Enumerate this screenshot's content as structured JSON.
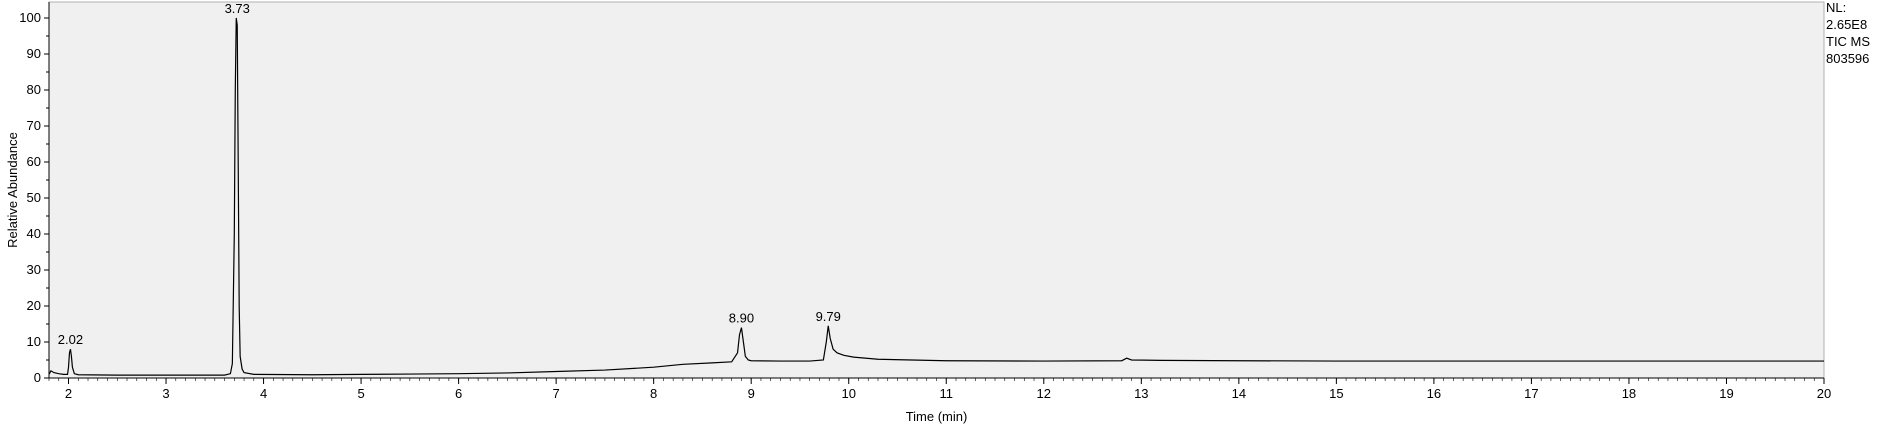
{
  "chart_data": {
    "type": "line",
    "title": "",
    "xlabel": "Time (min)",
    "ylabel": "Relative Abundance",
    "xlim": [
      1.8,
      20
    ],
    "ylim": [
      0,
      100
    ],
    "x_ticks": [
      "2",
      "3",
      "4",
      "5",
      "6",
      "7",
      "8",
      "9",
      "10",
      "11",
      "12",
      "13",
      "14",
      "15",
      "16",
      "17",
      "18",
      "19",
      "20"
    ],
    "y_ticks": [
      "0",
      "10",
      "20",
      "30",
      "40",
      "50",
      "60",
      "70",
      "80",
      "90",
      "100"
    ],
    "grid": false,
    "background": "#f0f0f0",
    "line_color": "#000000",
    "info_lines": [
      "NL:",
      "2.65E8",
      "TIC  MS",
      "803596"
    ],
    "peak_labels": [
      {
        "label": "2.02",
        "x": 2.02,
        "y": 8
      },
      {
        "label": "3.73",
        "x": 3.73,
        "y": 100
      },
      {
        "label": "8.90",
        "x": 8.9,
        "y": 14
      },
      {
        "label": "9.79",
        "x": 9.79,
        "y": 14.5
      }
    ],
    "series": [
      {
        "x": [
          1.8,
          1.82,
          1.85,
          1.9,
          1.95,
          1.99,
          2.0,
          2.01,
          2.02,
          2.03,
          2.04,
          2.06,
          2.1,
          2.5,
          3.0,
          3.5,
          3.6,
          3.66,
          3.68,
          3.7,
          3.71,
          3.72,
          3.73,
          3.74,
          3.75,
          3.76,
          3.78,
          3.8,
          3.9,
          4.5,
          5.0,
          5.5,
          6.0,
          6.5,
          7.0,
          7.5,
          8.0,
          8.3,
          8.6,
          8.8,
          8.86,
          8.88,
          8.9,
          8.92,
          8.94,
          8.97,
          9.0,
          9.3,
          9.6,
          9.74,
          9.77,
          9.79,
          9.81,
          9.84,
          9.88,
          9.95,
          10.05,
          10.3,
          11.0,
          12.0,
          12.8,
          12.85,
          12.9,
          13.2,
          14.0,
          15.0,
          16.0,
          17.0,
          18.0,
          19.0,
          20.0
        ],
        "y": [
          1.0,
          2.0,
          1.5,
          1.2,
          1.0,
          1.0,
          3.0,
          7.0,
          8.0,
          6.0,
          3.0,
          1.2,
          0.9,
          0.8,
          0.8,
          0.8,
          0.8,
          1.2,
          4.0,
          40.0,
          80.0,
          100.0,
          98.0,
          60.0,
          20.0,
          6.0,
          2.5,
          1.5,
          1.0,
          0.9,
          1.0,
          1.1,
          1.2,
          1.4,
          1.8,
          2.2,
          3.0,
          3.8,
          4.2,
          4.5,
          7.0,
          12.0,
          14.0,
          10.0,
          6.0,
          5.0,
          4.8,
          4.7,
          4.7,
          5.0,
          10.0,
          14.5,
          11.0,
          8.0,
          7.0,
          6.3,
          5.8,
          5.2,
          4.8,
          4.7,
          4.8,
          5.5,
          5.0,
          4.9,
          4.8,
          4.7,
          4.7,
          4.7,
          4.7,
          4.7,
          4.7
        ]
      }
    ]
  }
}
